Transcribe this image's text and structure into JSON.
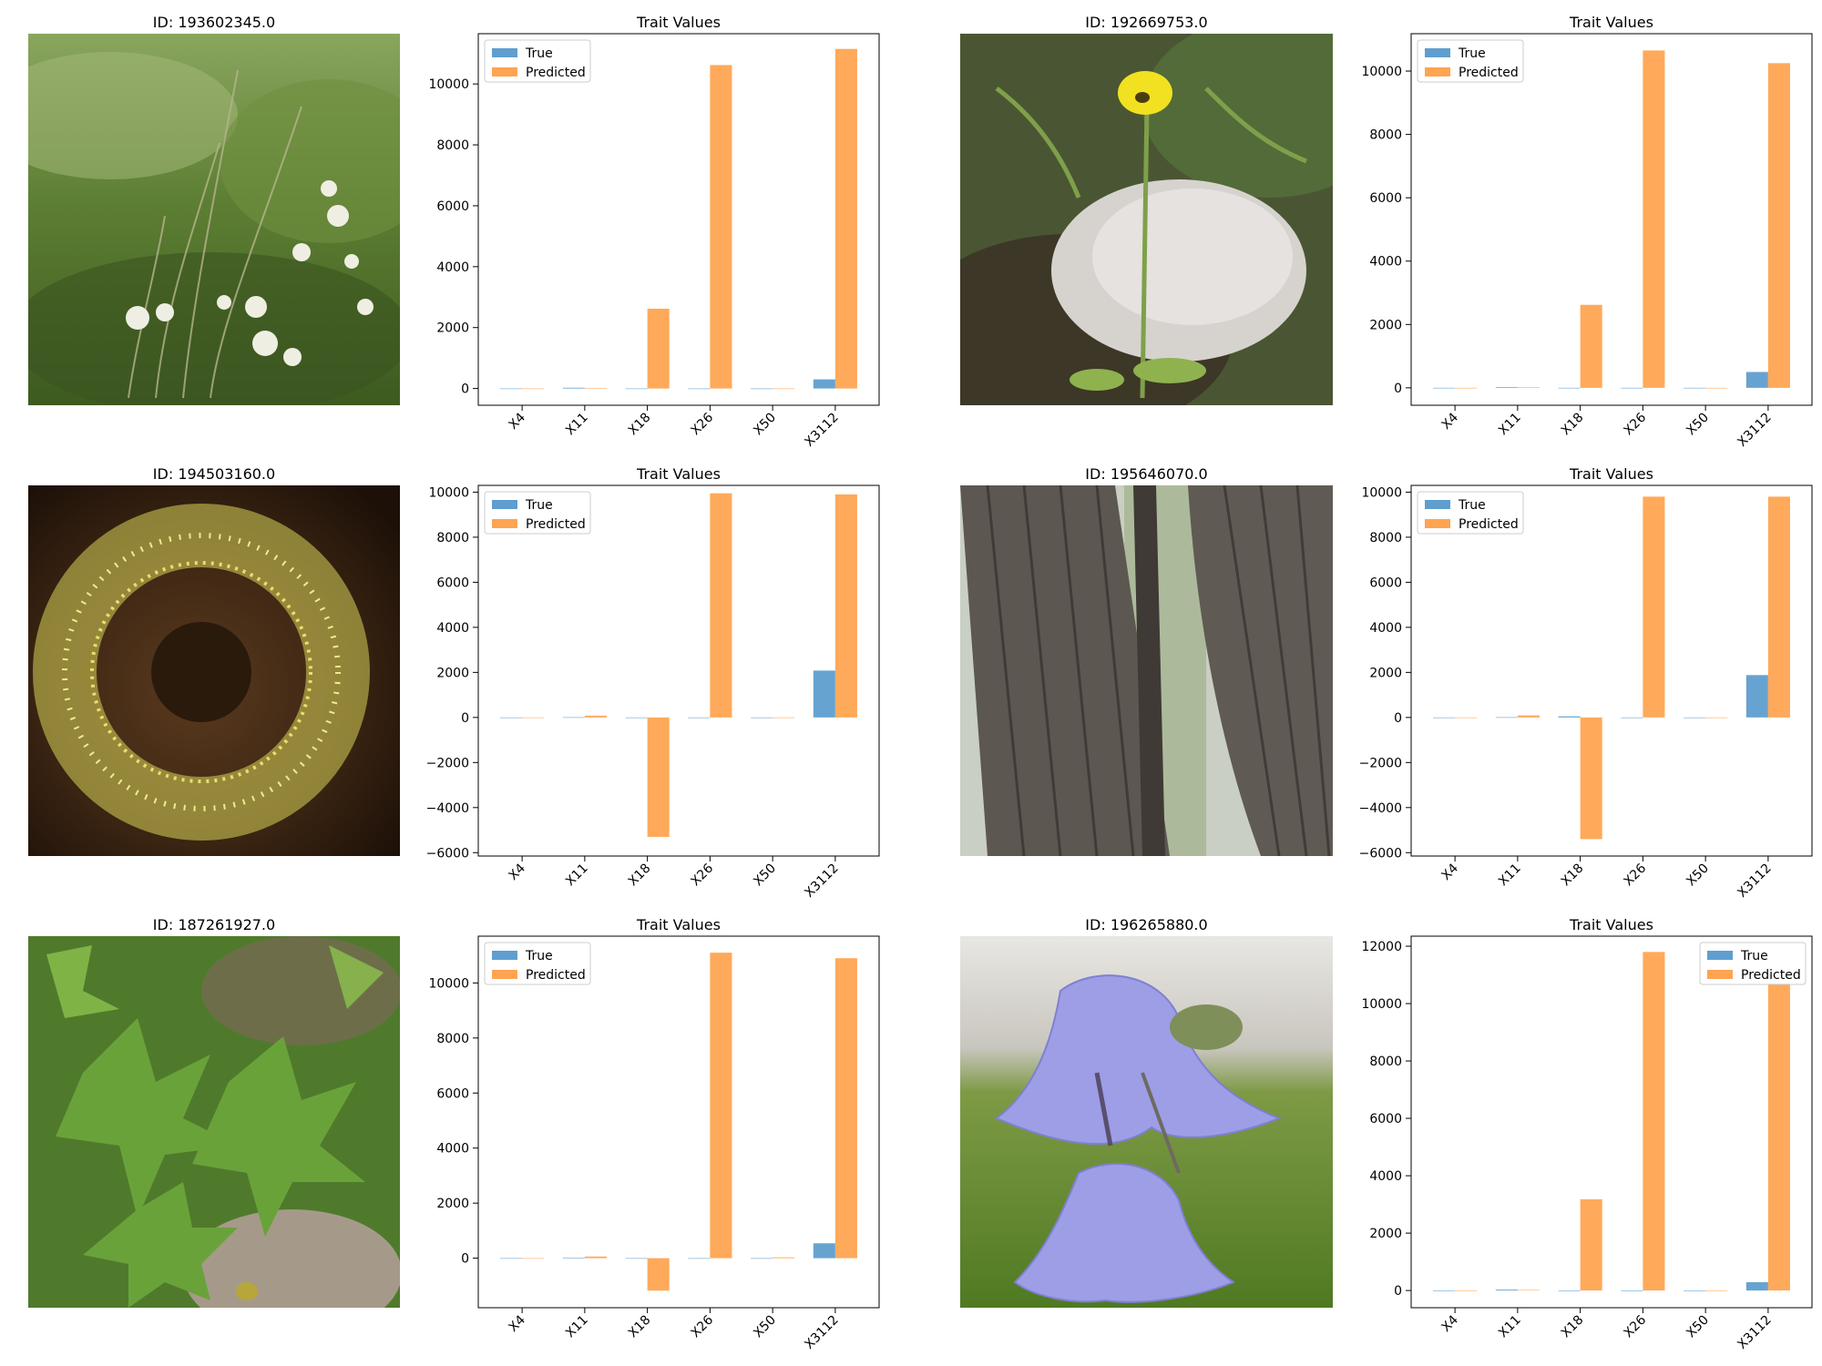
{
  "colors": {
    "true": "#5f9ecf",
    "predicted": "#ffa451",
    "axis": "#000000",
    "legend_border": "#cccccc"
  },
  "categories": [
    "X4",
    "X11",
    "X18",
    "X26",
    "X50",
    "X3112"
  ],
  "panels": [
    {
      "image": {
        "title": "ID: 193602345.0",
        "content": "grassland-with-white-flowers-photo"
      },
      "chart_data": {
        "type": "bar",
        "title": "Trait Values",
        "legend_position": "upper-left",
        "categories": [
          "X4",
          "X11",
          "X18",
          "X26",
          "X50",
          "X3112"
        ],
        "series": [
          {
            "name": "True",
            "values": [
              0.4,
              25,
              0.5,
              0.1,
              0.02,
              300
            ]
          },
          {
            "name": "Predicted",
            "values": [
              0.3,
              18,
              2620,
              10620,
              0.05,
              11150
            ]
          }
        ],
        "ylim": [
          -550,
          11650
        ],
        "yticks": [
          0,
          2000,
          4000,
          6000,
          8000,
          10000
        ]
      }
    },
    {
      "image": {
        "title": "ID: 192669753.0",
        "content": "yellow-buttercup-flower-by-rock-photo"
      },
      "chart_data": {
        "type": "bar",
        "title": "Trait Values",
        "legend_position": "upper-left",
        "categories": [
          "X4",
          "X11",
          "X18",
          "X26",
          "X50",
          "X3112"
        ],
        "series": [
          {
            "name": "True",
            "values": [
              0.4,
              22,
              0.5,
              0.1,
              0.02,
              500
            ]
          },
          {
            "name": "Predicted",
            "values": [
              0.3,
              18,
              2620,
              10650,
              0.05,
              10250
            ]
          }
        ],
        "ylim": [
          -550,
          11180
        ],
        "yticks": [
          0,
          2000,
          4000,
          6000,
          8000,
          10000
        ]
      }
    },
    {
      "image": {
        "title": "ID: 194503160.0",
        "content": "yellow-stamen-flower-photo"
      },
      "chart_data": {
        "type": "bar",
        "title": "Trait Values",
        "legend_position": "upper-left",
        "categories": [
          "X4",
          "X11",
          "X18",
          "X26",
          "X50",
          "X3112"
        ],
        "series": [
          {
            "name": "True",
            "values": [
              0.4,
              10,
              0.5,
              0.1,
              0.02,
              2080
            ]
          },
          {
            "name": "Predicted",
            "values": [
              0.3,
              80,
              -5300,
              9950,
              0.05,
              9900
            ]
          }
        ],
        "ylim": [
          -6150,
          10300
        ],
        "yticks": [
          -6000,
          -4000,
          -2000,
          0,
          2000,
          4000,
          6000,
          8000,
          10000
        ]
      }
    },
    {
      "image": {
        "title": "ID: 195646070.0",
        "content": "tree-trunks-bark-photo"
      },
      "chart_data": {
        "type": "bar",
        "title": "Trait Values",
        "legend_position": "upper-left",
        "categories": [
          "X4",
          "X11",
          "X18",
          "X26",
          "X50",
          "X3112"
        ],
        "series": [
          {
            "name": "True",
            "values": [
              0.4,
              10,
              50,
              0.1,
              0.02,
              1880
            ]
          },
          {
            "name": "Predicted",
            "values": [
              0.3,
              90,
              -5400,
              9800,
              0.05,
              9800
            ]
          }
        ],
        "ylim": [
          -6150,
          10300
        ],
        "yticks": [
          -6000,
          -4000,
          -2000,
          0,
          2000,
          4000,
          6000,
          8000,
          10000
        ]
      }
    },
    {
      "image": {
        "title": "ID: 187261927.0",
        "content": "green-lobed-leaves-plant-photo"
      },
      "chart_data": {
        "type": "bar",
        "title": "Trait Values",
        "legend_position": "upper-left",
        "categories": [
          "X4",
          "X11",
          "X18",
          "X26",
          "X50",
          "X3112"
        ],
        "series": [
          {
            "name": "True",
            "values": [
              0.4,
              10,
              0.5,
              0.1,
              0.02,
              540
            ]
          },
          {
            "name": "Predicted",
            "values": [
              0.3,
              60,
              -1180,
              11100,
              30,
              10900
            ]
          }
        ],
        "ylim": [
          -1800,
          11700
        ],
        "yticks": [
          0,
          2000,
          4000,
          6000,
          8000,
          10000
        ]
      }
    },
    {
      "image": {
        "title": "ID: 196265880.0",
        "content": "purple-bellflower-photo"
      },
      "chart_data": {
        "type": "bar",
        "title": "Trait Values",
        "legend_position": "upper-right",
        "categories": [
          "X4",
          "X11",
          "X18",
          "X26",
          "X50",
          "X3112"
        ],
        "series": [
          {
            "name": "True",
            "values": [
              0.4,
              30,
              0.5,
              0.1,
              0.02,
              290
            ]
          },
          {
            "name": "Predicted",
            "values": [
              0.3,
              18,
              3180,
              11800,
              0.05,
              10700
            ]
          }
        ],
        "ylim": [
          -600,
          12350
        ],
        "yticks": [
          0,
          2000,
          4000,
          6000,
          8000,
          10000,
          12000
        ]
      }
    }
  ]
}
